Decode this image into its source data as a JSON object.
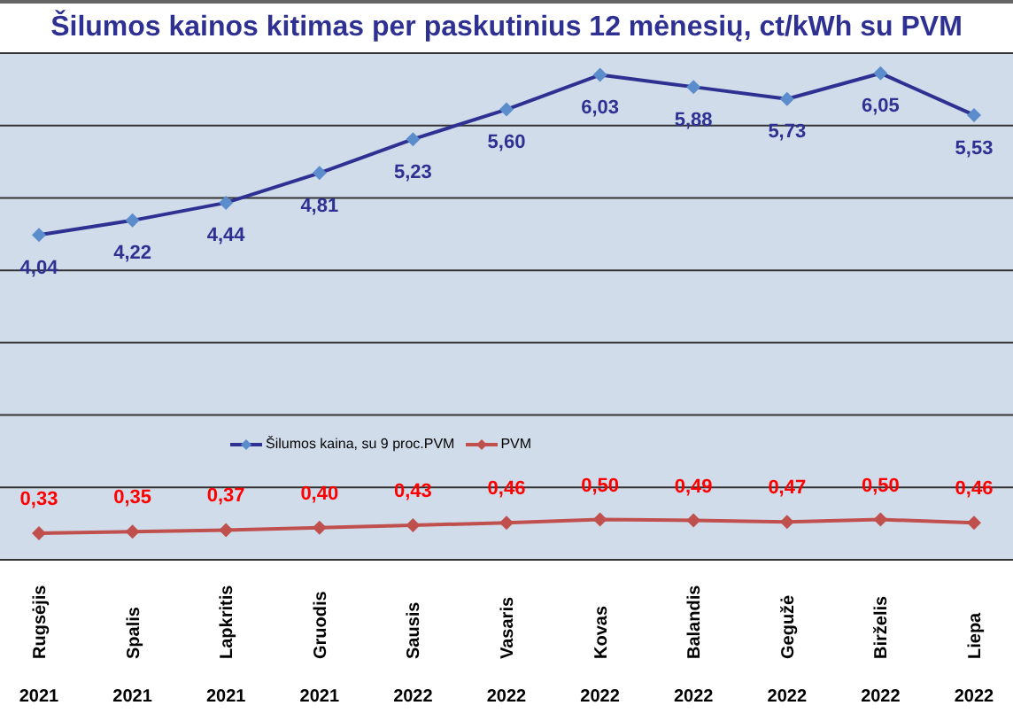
{
  "chart_data": {
    "type": "line",
    "title": "Šilumos kainos kitimas per paskutinius 12 mėnesių, ct/kWh su PVM",
    "categories": [
      "Rugsėjis\n2021",
      "Spalis\n2021",
      "Lapkritis\n2021",
      "Gruodis\n2021",
      "Sausis\n2022",
      "Vasaris\n2022",
      "Kovas\n2022",
      "Balandis\n2022",
      "Gegužė\n2022",
      "Birželis\n2022",
      "Liepa\n2022"
    ],
    "series": [
      {
        "name": "Šilumos kaina, su 9 proc.PVM",
        "color": "#2e3192",
        "values": [
          4.04,
          4.22,
          4.44,
          4.81,
          5.23,
          5.6,
          6.03,
          5.88,
          5.73,
          6.05,
          5.53
        ],
        "value_labels": [
          "4,04",
          "4,22",
          "4,44",
          "4,81",
          "5,23",
          "5,60",
          "6,03",
          "5,88",
          "5,73",
          "6,05",
          "5,53"
        ]
      },
      {
        "name": "PVM",
        "color": "#c0504d",
        "values": [
          0.33,
          0.35,
          0.37,
          0.4,
          0.43,
          0.46,
          0.5,
          0.49,
          0.47,
          0.5,
          0.46
        ],
        "value_labels": [
          "0,33",
          "0,35",
          "0,37",
          "0,40",
          "0,43",
          "0,46",
          "0,50",
          "0,49",
          "0,47",
          "0,50",
          "0,46"
        ]
      }
    ],
    "tick_labels": "x",
    "grid": "y",
    "legend": "bottom",
    "marker": "diamond",
    "line_style": "solid"
  }
}
